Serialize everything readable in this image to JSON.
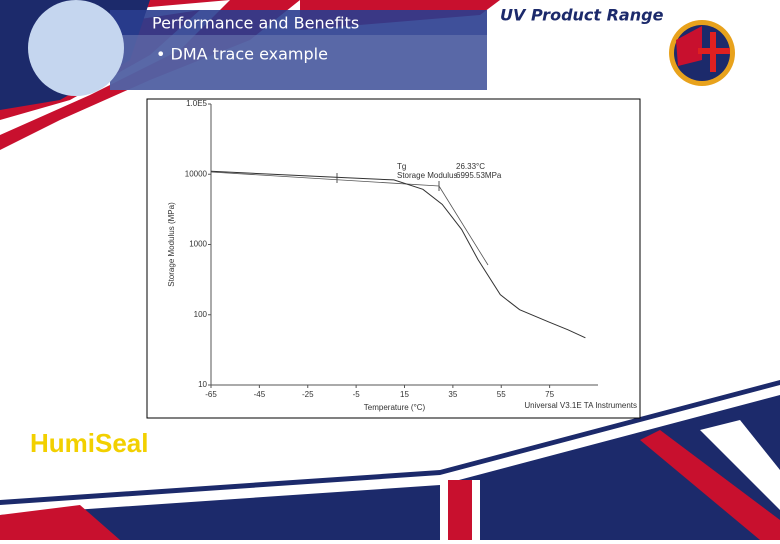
{
  "header": {
    "title": "Performance and Benefits",
    "bullet": "• DMA trace example"
  },
  "product_title": "UV Product Range",
  "logo": "HumiSeal",
  "chart_data": {
    "type": "line",
    "x_label": "Temperature (°C)",
    "y_label": "Storage Modulus (MPa)",
    "annotations": [
      "Tg",
      "26.33°C",
      "Storage Modulus",
      "6995.53MPa"
    ],
    "footer": "Universal V3.1E TA Instruments",
    "x": [
      -65,
      -13.4,
      10.6,
      22.6,
      30.6,
      38.6,
      45.4,
      54.6,
      62.6,
      74.6,
      82.6,
      89.8
    ],
    "values": [
      11000,
      9060,
      8300,
      6100,
      3730,
      1640,
      610,
      193,
      118,
      79,
      61,
      47
    ],
    "color": "#333333",
    "xlim": [
      -65,
      95
    ],
    "xticks": [
      -65,
      -45,
      -25,
      -5,
      15,
      35,
      55,
      75
    ],
    "ylim": [
      10,
      100000
    ],
    "yscale": "log",
    "yticks": [
      10,
      100,
      1000,
      10000,
      {
        "value": 100000,
        "label": "1.0E5"
      }
    ]
  }
}
